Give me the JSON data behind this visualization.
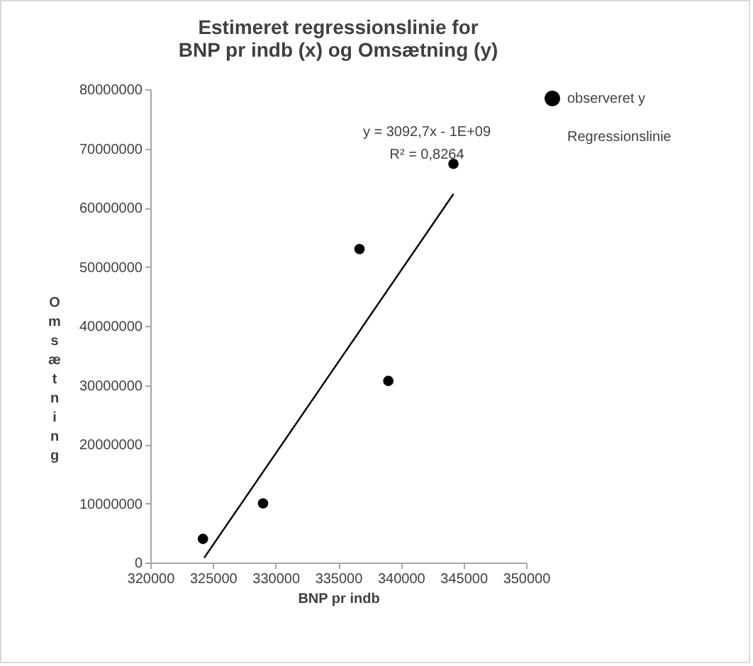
{
  "chart_data": {
    "type": "scatter",
    "title": [
      "Estimeret regressionslinie for",
      "BNP pr indb (x) og Omsætning (y)"
    ],
    "xlabel": "BNP pr indb",
    "ylabel": "Omsætning",
    "series": [
      {
        "name": "observeret y",
        "marker": "circle",
        "color": "#000000",
        "x": [
          324200,
          329000,
          336700,
          339000,
          344200
        ],
        "values": [
          4000000,
          10000000,
          53000000,
          30700000,
          67400000
        ]
      },
      {
        "name": "Regressionslinie",
        "type": "line",
        "color": "#000000",
        "x": [
          324300,
          344200
        ],
        "values": [
          800000,
          62300000
        ]
      }
    ],
    "annotations": [
      "y = 3092,7x - 1E+09",
      "R² = 0,8264"
    ],
    "xlim": [
      320000,
      350000
    ],
    "xticks": [
      320000,
      325000,
      330000,
      335000,
      340000,
      345000,
      350000
    ],
    "ylim": [
      0,
      80000000
    ],
    "yticks": [
      0,
      10000000,
      20000000,
      30000000,
      40000000,
      50000000,
      60000000,
      70000000,
      80000000
    ],
    "grid": false,
    "legend": "right",
    "line_style": "solid"
  }
}
